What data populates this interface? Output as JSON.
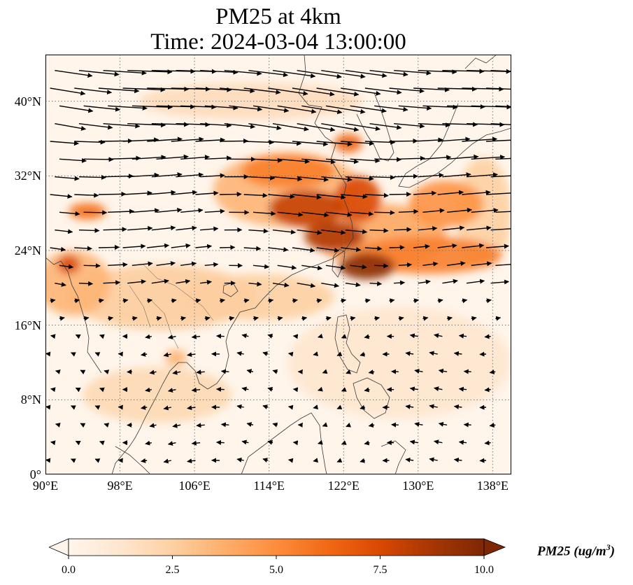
{
  "title": {
    "line1": "PM25 at 4km",
    "line2": "Time: 2024-03-04 13:00:00"
  },
  "map": {
    "extent": {
      "lon_min": 90,
      "lon_max": 140,
      "lat_min": 0,
      "lat_max": 45
    },
    "y_ticks": [
      {
        "value": 0,
        "label": "0°"
      },
      {
        "value": 8,
        "label": "8°N"
      },
      {
        "value": 16,
        "label": "16°N"
      },
      {
        "value": 24,
        "label": "24°N"
      },
      {
        "value": 32,
        "label": "32°N"
      },
      {
        "value": 40,
        "label": "40°N"
      }
    ],
    "x_ticks": [
      {
        "value": 90,
        "label": "90°E"
      },
      {
        "value": 98,
        "label": "98°E"
      },
      {
        "value": 106,
        "label": "106°E"
      },
      {
        "value": 114,
        "label": "114°E"
      },
      {
        "value": 122,
        "label": "122°E"
      },
      {
        "value": 130,
        "label": "130°E"
      },
      {
        "value": 138,
        "label": "138°E"
      }
    ],
    "gridlines": true,
    "gridline_style": "dotted",
    "colors": {
      "land_outline": "#3a3a3a",
      "grid": "#777777",
      "wind_arrow": "#000000"
    },
    "pm25_field": [
      {
        "lon": 124.5,
        "lat": 22.3,
        "r_lon": 3.0,
        "r_lat": 1.4,
        "value": 9.6
      },
      {
        "lon": 121.0,
        "lat": 25.5,
        "r_lon": 3.2,
        "r_lat": 1.6,
        "value": 8.5
      },
      {
        "lon": 118.0,
        "lat": 28.5,
        "r_lon": 4.0,
        "r_lat": 2.0,
        "value": 8.0
      },
      {
        "lon": 123.5,
        "lat": 29.5,
        "r_lon": 2.5,
        "r_lat": 2.5,
        "value": 7.5
      },
      {
        "lon": 122.5,
        "lat": 35.5,
        "r_lon": 1.5,
        "r_lat": 1.0,
        "value": 6.5
      },
      {
        "lon": 116.0,
        "lat": 32.5,
        "r_lon": 5.0,
        "r_lat": 1.8,
        "value": 5.5
      },
      {
        "lon": 131.0,
        "lat": 23.5,
        "r_lon": 8.0,
        "r_lat": 2.0,
        "value": 5.5
      },
      {
        "lon": 133.0,
        "lat": 29.0,
        "r_lon": 4.0,
        "r_lat": 2.5,
        "value": 4.8
      },
      {
        "lon": 126.0,
        "lat": 25.5,
        "r_lon": 7.0,
        "r_lat": 3.5,
        "value": 4.0
      },
      {
        "lon": 116.0,
        "lat": 30.5,
        "r_lon": 8.0,
        "r_lat": 4.0,
        "value": 3.5
      },
      {
        "lon": 94.5,
        "lat": 28.2,
        "r_lon": 2.0,
        "r_lat": 0.9,
        "value": 6.0
      },
      {
        "lon": 92.5,
        "lat": 22.5,
        "r_lon": 1.2,
        "r_lat": 1.0,
        "value": 7.5
      },
      {
        "lon": 93.0,
        "lat": 20.5,
        "r_lon": 4.0,
        "r_lat": 3.5,
        "value": 3.5
      },
      {
        "lon": 102.5,
        "lat": 19.0,
        "r_lon": 10.0,
        "r_lat": 3.5,
        "value": 2.6
      },
      {
        "lon": 113.0,
        "lat": 19.0,
        "r_lon": 8.0,
        "r_lat": 2.5,
        "value": 2.5
      },
      {
        "lon": 104.0,
        "lat": 12.5,
        "r_lon": 1.2,
        "r_lat": 0.9,
        "value": 3.5
      },
      {
        "lon": 102.0,
        "lat": 8.5,
        "r_lon": 8.0,
        "r_lat": 3.0,
        "value": 2.0
      },
      {
        "lon": 112.0,
        "lat": 40.0,
        "r_lon": 12.0,
        "r_lat": 2.0,
        "value": 1.8
      },
      {
        "lon": 128.0,
        "lat": 12.0,
        "r_lon": 12.0,
        "r_lat": 6.0,
        "value": 1.2
      },
      {
        "lon": 137.0,
        "lat": 28.0,
        "r_lon": 3.0,
        "r_lat": 6.0,
        "value": 2.5
      }
    ]
  },
  "colorbar": {
    "label": "PM25 (ug/m",
    "label_sup": "3",
    "label_close": ")",
    "min": 0.0,
    "max": 10.0,
    "extend": "both",
    "ticks": [
      "0.0",
      "2.5",
      "5.0",
      "7.5",
      "10.0"
    ],
    "tick_values": [
      0.0,
      2.5,
      5.0,
      7.5,
      10.0
    ],
    "colormap": [
      "#fff5eb",
      "#fee6ce",
      "#fdd0a2",
      "#fdae6b",
      "#fd8d3c",
      "#f16913",
      "#d94801",
      "#a63603",
      "#7f2704"
    ]
  }
}
